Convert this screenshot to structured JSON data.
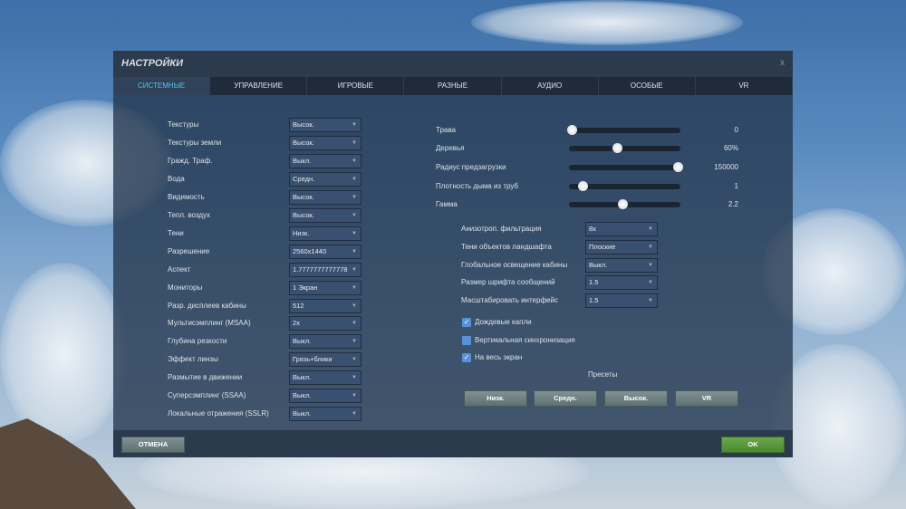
{
  "dialog": {
    "title": "НАСТРОЙКИ",
    "close": "x"
  },
  "tabs": [
    {
      "label": "СИСТЕМНЫЕ",
      "active": true
    },
    {
      "label": "УПРАВЛЕНИЕ"
    },
    {
      "label": "ИГРОВЫЕ"
    },
    {
      "label": "РАЗНЫЕ"
    },
    {
      "label": "АУДИО"
    },
    {
      "label": "ОСОБЫЕ"
    },
    {
      "label": "VR"
    }
  ],
  "left_settings": [
    {
      "label": "Текстуры",
      "value": "Высок."
    },
    {
      "label": "Текстуры земли",
      "value": "Высок."
    },
    {
      "label": "Гражд. Траф.",
      "value": "Выкл."
    },
    {
      "label": "Вода",
      "value": "Средн."
    },
    {
      "label": "Видимость",
      "value": "Высок."
    },
    {
      "label": "Тепл. воздух",
      "value": "Высок."
    },
    {
      "label": "Тени",
      "value": "Низк."
    },
    {
      "label": "Разрешение",
      "value": "2560x1440"
    },
    {
      "label": "Аспект",
      "value": "1.7777777777778"
    },
    {
      "label": "Мониторы",
      "value": "1 Экран"
    },
    {
      "label": "Разр. дисплеев кабины",
      "value": "512"
    },
    {
      "label": "Мультисэмплинг (MSAA)",
      "value": "2x"
    },
    {
      "label": "Глубина резкости",
      "value": "Выкл."
    },
    {
      "label": "Эффект линзы",
      "value": "Грязь+блики"
    },
    {
      "label": "Размытие в движении",
      "value": "Выкл."
    },
    {
      "label": "Суперсэмплинг (SSAA)",
      "value": "Выкл."
    },
    {
      "label": "Локальные отражения (SSLR)",
      "value": "Выкл."
    }
  ],
  "sliders": [
    {
      "label": "Трава",
      "value": "0",
      "fraction": 0
    },
    {
      "label": "Деревья",
      "value": "60%",
      "fraction": 0.43
    },
    {
      "label": "Радиус предзагрузки",
      "value": "150000",
      "fraction": 1
    },
    {
      "label": "Плотность дыма из труб",
      "value": "1",
      "fraction": 0.1
    },
    {
      "label": "Гамма",
      "value": "2.2",
      "fraction": 0.48
    }
  ],
  "right_settings": [
    {
      "label": "Анизотроп. фильтрация",
      "value": "8x"
    },
    {
      "label": "Тени объектов ландшафта",
      "value": "Плоские"
    },
    {
      "label": "Глобальное освещение кабины",
      "value": "Выкл."
    },
    {
      "label": "Размер шрифта сообщений",
      "value": "1.5"
    },
    {
      "label": "Масштабировать интерфейс",
      "value": "1.5"
    }
  ],
  "checkboxes": [
    {
      "label": "Дождевые капли",
      "checked": true
    },
    {
      "label": "Вертикальная синхронизация",
      "checked": false
    },
    {
      "label": "На весь экран",
      "checked": true
    }
  ],
  "presets": {
    "title": "Пресеты",
    "buttons": [
      "Низк.",
      "Средн.",
      "Высок.",
      "VR"
    ]
  },
  "footer": {
    "cancel": "ОТМЕНА",
    "ok": "OK"
  },
  "colors": {
    "active_tab": "#5cc3e6",
    "ok_button": "#5a9a3e",
    "checkbox": "#5a90d8"
  }
}
